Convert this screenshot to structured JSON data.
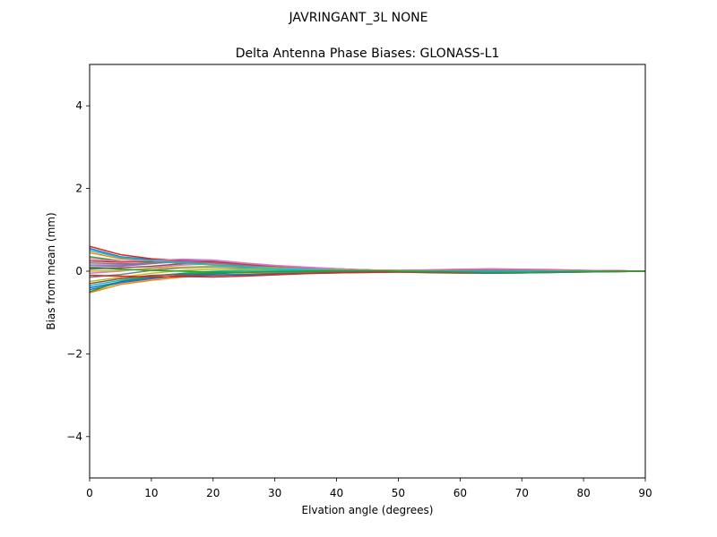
{
  "suptitle": "JAVRINGANT_3L   NONE",
  "chart_data": {
    "type": "line",
    "title": "Delta Antenna Phase Biases: GLONASS-L1",
    "xlabel": "Elvation angle (degrees)",
    "ylabel": "Bias from mean (mm)",
    "xlim": [
      0,
      90
    ],
    "ylim": [
      -5,
      5
    ],
    "xticks": [
      0,
      10,
      20,
      30,
      40,
      50,
      60,
      70,
      80,
      90
    ],
    "yticks": [
      -4,
      -2,
      0,
      2,
      4
    ],
    "ytick_labels": [
      "−4",
      "−2",
      "0",
      "2",
      "4"
    ],
    "grid": false,
    "legend": "none",
    "x": [
      0,
      5,
      10,
      15,
      20,
      25,
      30,
      35,
      40,
      45,
      50,
      55,
      60,
      65,
      70,
      75,
      80,
      85,
      90
    ],
    "series": [
      {
        "color": "#1f77b4",
        "values": [
          0.55,
          0.35,
          0.28,
          0.22,
          0.18,
          0.12,
          0.08,
          0.05,
          0.03,
          0.02,
          0.01,
          0.0,
          0.0,
          0.01,
          0.01,
          0.02,
          0.01,
          0.01,
          0.0
        ]
      },
      {
        "color": "#ff7f0e",
        "values": [
          0.45,
          0.3,
          0.25,
          0.24,
          0.2,
          0.14,
          0.1,
          0.07,
          0.04,
          0.02,
          0.0,
          -0.01,
          -0.02,
          -0.02,
          -0.01,
          0.0,
          0.0,
          0.0,
          0.0
        ]
      },
      {
        "color": "#2ca02c",
        "values": [
          0.35,
          0.25,
          0.22,
          0.2,
          0.16,
          0.12,
          0.08,
          0.06,
          0.04,
          0.03,
          0.01,
          0.0,
          0.0,
          0.0,
          0.0,
          0.0,
          0.0,
          0.0,
          0.0
        ]
      },
      {
        "color": "#d62728",
        "values": [
          0.25,
          0.22,
          0.25,
          0.28,
          0.22,
          0.15,
          0.1,
          0.06,
          0.03,
          0.01,
          0.0,
          0.01,
          0.02,
          0.02,
          0.02,
          0.01,
          0.01,
          0.0,
          0.0
        ]
      },
      {
        "color": "#9467bd",
        "values": [
          0.15,
          0.15,
          0.2,
          0.25,
          0.24,
          0.16,
          0.11,
          0.07,
          0.04,
          0.02,
          0.01,
          0.02,
          0.03,
          0.04,
          0.03,
          0.02,
          0.01,
          0.0,
          0.0
        ]
      },
      {
        "color": "#8c564b",
        "values": [
          0.05,
          0.08,
          0.12,
          0.18,
          0.2,
          0.15,
          0.1,
          0.07,
          0.05,
          0.03,
          0.02,
          0.02,
          0.02,
          0.02,
          0.02,
          0.01,
          0.01,
          0.0,
          0.0
        ]
      },
      {
        "color": "#e377c2",
        "values": [
          -0.05,
          0.0,
          0.08,
          0.15,
          0.18,
          0.14,
          0.1,
          0.06,
          0.04,
          0.02,
          0.01,
          0.01,
          0.03,
          0.04,
          0.04,
          0.03,
          0.02,
          0.01,
          0.0
        ]
      },
      {
        "color": "#7f7f7f",
        "values": [
          -0.15,
          -0.08,
          0.02,
          0.08,
          0.1,
          0.08,
          0.06,
          0.04,
          0.02,
          0.01,
          0.0,
          -0.01,
          -0.01,
          0.0,
          0.0,
          0.0,
          0.0,
          0.0,
          0.0
        ]
      },
      {
        "color": "#bcbd22",
        "values": [
          -0.25,
          -0.15,
          -0.05,
          0.02,
          0.05,
          0.05,
          0.04,
          0.03,
          0.02,
          0.01,
          0.0,
          -0.01,
          -0.02,
          -0.02,
          -0.02,
          -0.01,
          0.0,
          0.0,
          0.0
        ]
      },
      {
        "color": "#17becf",
        "values": [
          -0.35,
          -0.22,
          -0.12,
          -0.05,
          0.0,
          0.02,
          0.02,
          0.02,
          0.01,
          0.0,
          -0.01,
          -0.02,
          -0.03,
          -0.03,
          -0.02,
          -0.01,
          0.0,
          0.0,
          0.0
        ]
      },
      {
        "color": "#1f77b4",
        "values": [
          -0.45,
          -0.28,
          -0.18,
          -0.1,
          -0.06,
          -0.03,
          -0.01,
          0.0,
          0.0,
          -0.01,
          -0.02,
          -0.03,
          -0.04,
          -0.04,
          -0.03,
          -0.02,
          -0.01,
          0.0,
          0.0
        ]
      },
      {
        "color": "#ff7f0e",
        "values": [
          -0.52,
          -0.32,
          -0.22,
          -0.14,
          -0.1,
          -0.07,
          -0.05,
          -0.03,
          -0.02,
          -0.02,
          -0.02,
          -0.04,
          -0.05,
          -0.05,
          -0.04,
          -0.03,
          -0.02,
          -0.01,
          0.0
        ]
      },
      {
        "color": "#2ca02c",
        "values": [
          -0.5,
          -0.25,
          -0.12,
          -0.06,
          -0.04,
          -0.03,
          -0.02,
          -0.01,
          0.0,
          0.0,
          -0.01,
          -0.02,
          -0.03,
          -0.04,
          -0.04,
          -0.03,
          -0.02,
          -0.01,
          0.0
        ]
      },
      {
        "color": "#d62728",
        "values": [
          0.6,
          0.4,
          0.3,
          0.26,
          0.22,
          0.16,
          0.12,
          0.09,
          0.06,
          0.03,
          0.01,
          0.0,
          0.01,
          0.02,
          0.02,
          0.02,
          0.01,
          0.01,
          0.0
        ]
      },
      {
        "color": "#9467bd",
        "values": [
          0.1,
          0.12,
          0.18,
          0.24,
          0.26,
          0.19,
          0.13,
          0.08,
          0.05,
          0.03,
          0.02,
          0.03,
          0.04,
          0.05,
          0.04,
          0.03,
          0.02,
          0.01,
          0.0
        ]
      },
      {
        "color": "#8c564b",
        "values": [
          -0.3,
          -0.18,
          -0.1,
          -0.08,
          -0.09,
          -0.08,
          -0.06,
          -0.05,
          -0.04,
          -0.03,
          -0.02,
          -0.02,
          -0.02,
          -0.02,
          -0.02,
          -0.01,
          -0.01,
          0.0,
          0.0
        ]
      },
      {
        "color": "#e377c2",
        "values": [
          0.3,
          0.24,
          0.26,
          0.29,
          0.27,
          0.2,
          0.14,
          0.1,
          0.06,
          0.03,
          0.02,
          0.03,
          0.05,
          0.06,
          0.05,
          0.04,
          0.02,
          0.01,
          0.0
        ]
      },
      {
        "color": "#7f7f7f",
        "values": [
          0.2,
          0.18,
          0.2,
          0.22,
          0.2,
          0.14,
          0.09,
          0.05,
          0.03,
          0.02,
          0.01,
          0.01,
          0.02,
          0.02,
          0.02,
          0.01,
          0.01,
          0.0,
          0.0
        ]
      },
      {
        "color": "#bcbd22",
        "values": [
          0.0,
          0.02,
          0.06,
          0.1,
          0.12,
          0.1,
          0.08,
          0.05,
          0.03,
          0.02,
          0.01,
          0.0,
          -0.01,
          -0.01,
          -0.01,
          0.0,
          0.0,
          0.0,
          0.0
        ]
      },
      {
        "color": "#17becf",
        "values": [
          0.5,
          0.33,
          0.26,
          0.2,
          0.15,
          0.1,
          0.06,
          0.04,
          0.02,
          0.01,
          0.0,
          0.0,
          0.0,
          0.0,
          0.0,
          0.0,
          0.0,
          0.0,
          0.0
        ]
      },
      {
        "color": "#1f77b4",
        "values": [
          -0.4,
          -0.26,
          -0.16,
          -0.11,
          -0.1,
          -0.09,
          -0.07,
          -0.05,
          -0.03,
          -0.02,
          -0.02,
          -0.03,
          -0.04,
          -0.05,
          -0.04,
          -0.03,
          -0.02,
          -0.01,
          0.0
        ]
      },
      {
        "color": "#d62728",
        "values": [
          -0.1,
          -0.12,
          -0.14,
          -0.13,
          -0.14,
          -0.12,
          -0.09,
          -0.06,
          -0.04,
          -0.03,
          -0.02,
          -0.02,
          -0.03,
          -0.03,
          -0.03,
          -0.02,
          -0.01,
          0.0,
          0.0
        ]
      },
      {
        "color": "#2ca02c",
        "values": [
          0.08,
          0.05,
          0.02,
          0.0,
          -0.02,
          -0.02,
          -0.01,
          0.0,
          0.01,
          0.01,
          0.0,
          -0.01,
          -0.02,
          -0.03,
          -0.03,
          -0.02,
          -0.01,
          -0.01,
          0.0
        ]
      }
    ]
  }
}
